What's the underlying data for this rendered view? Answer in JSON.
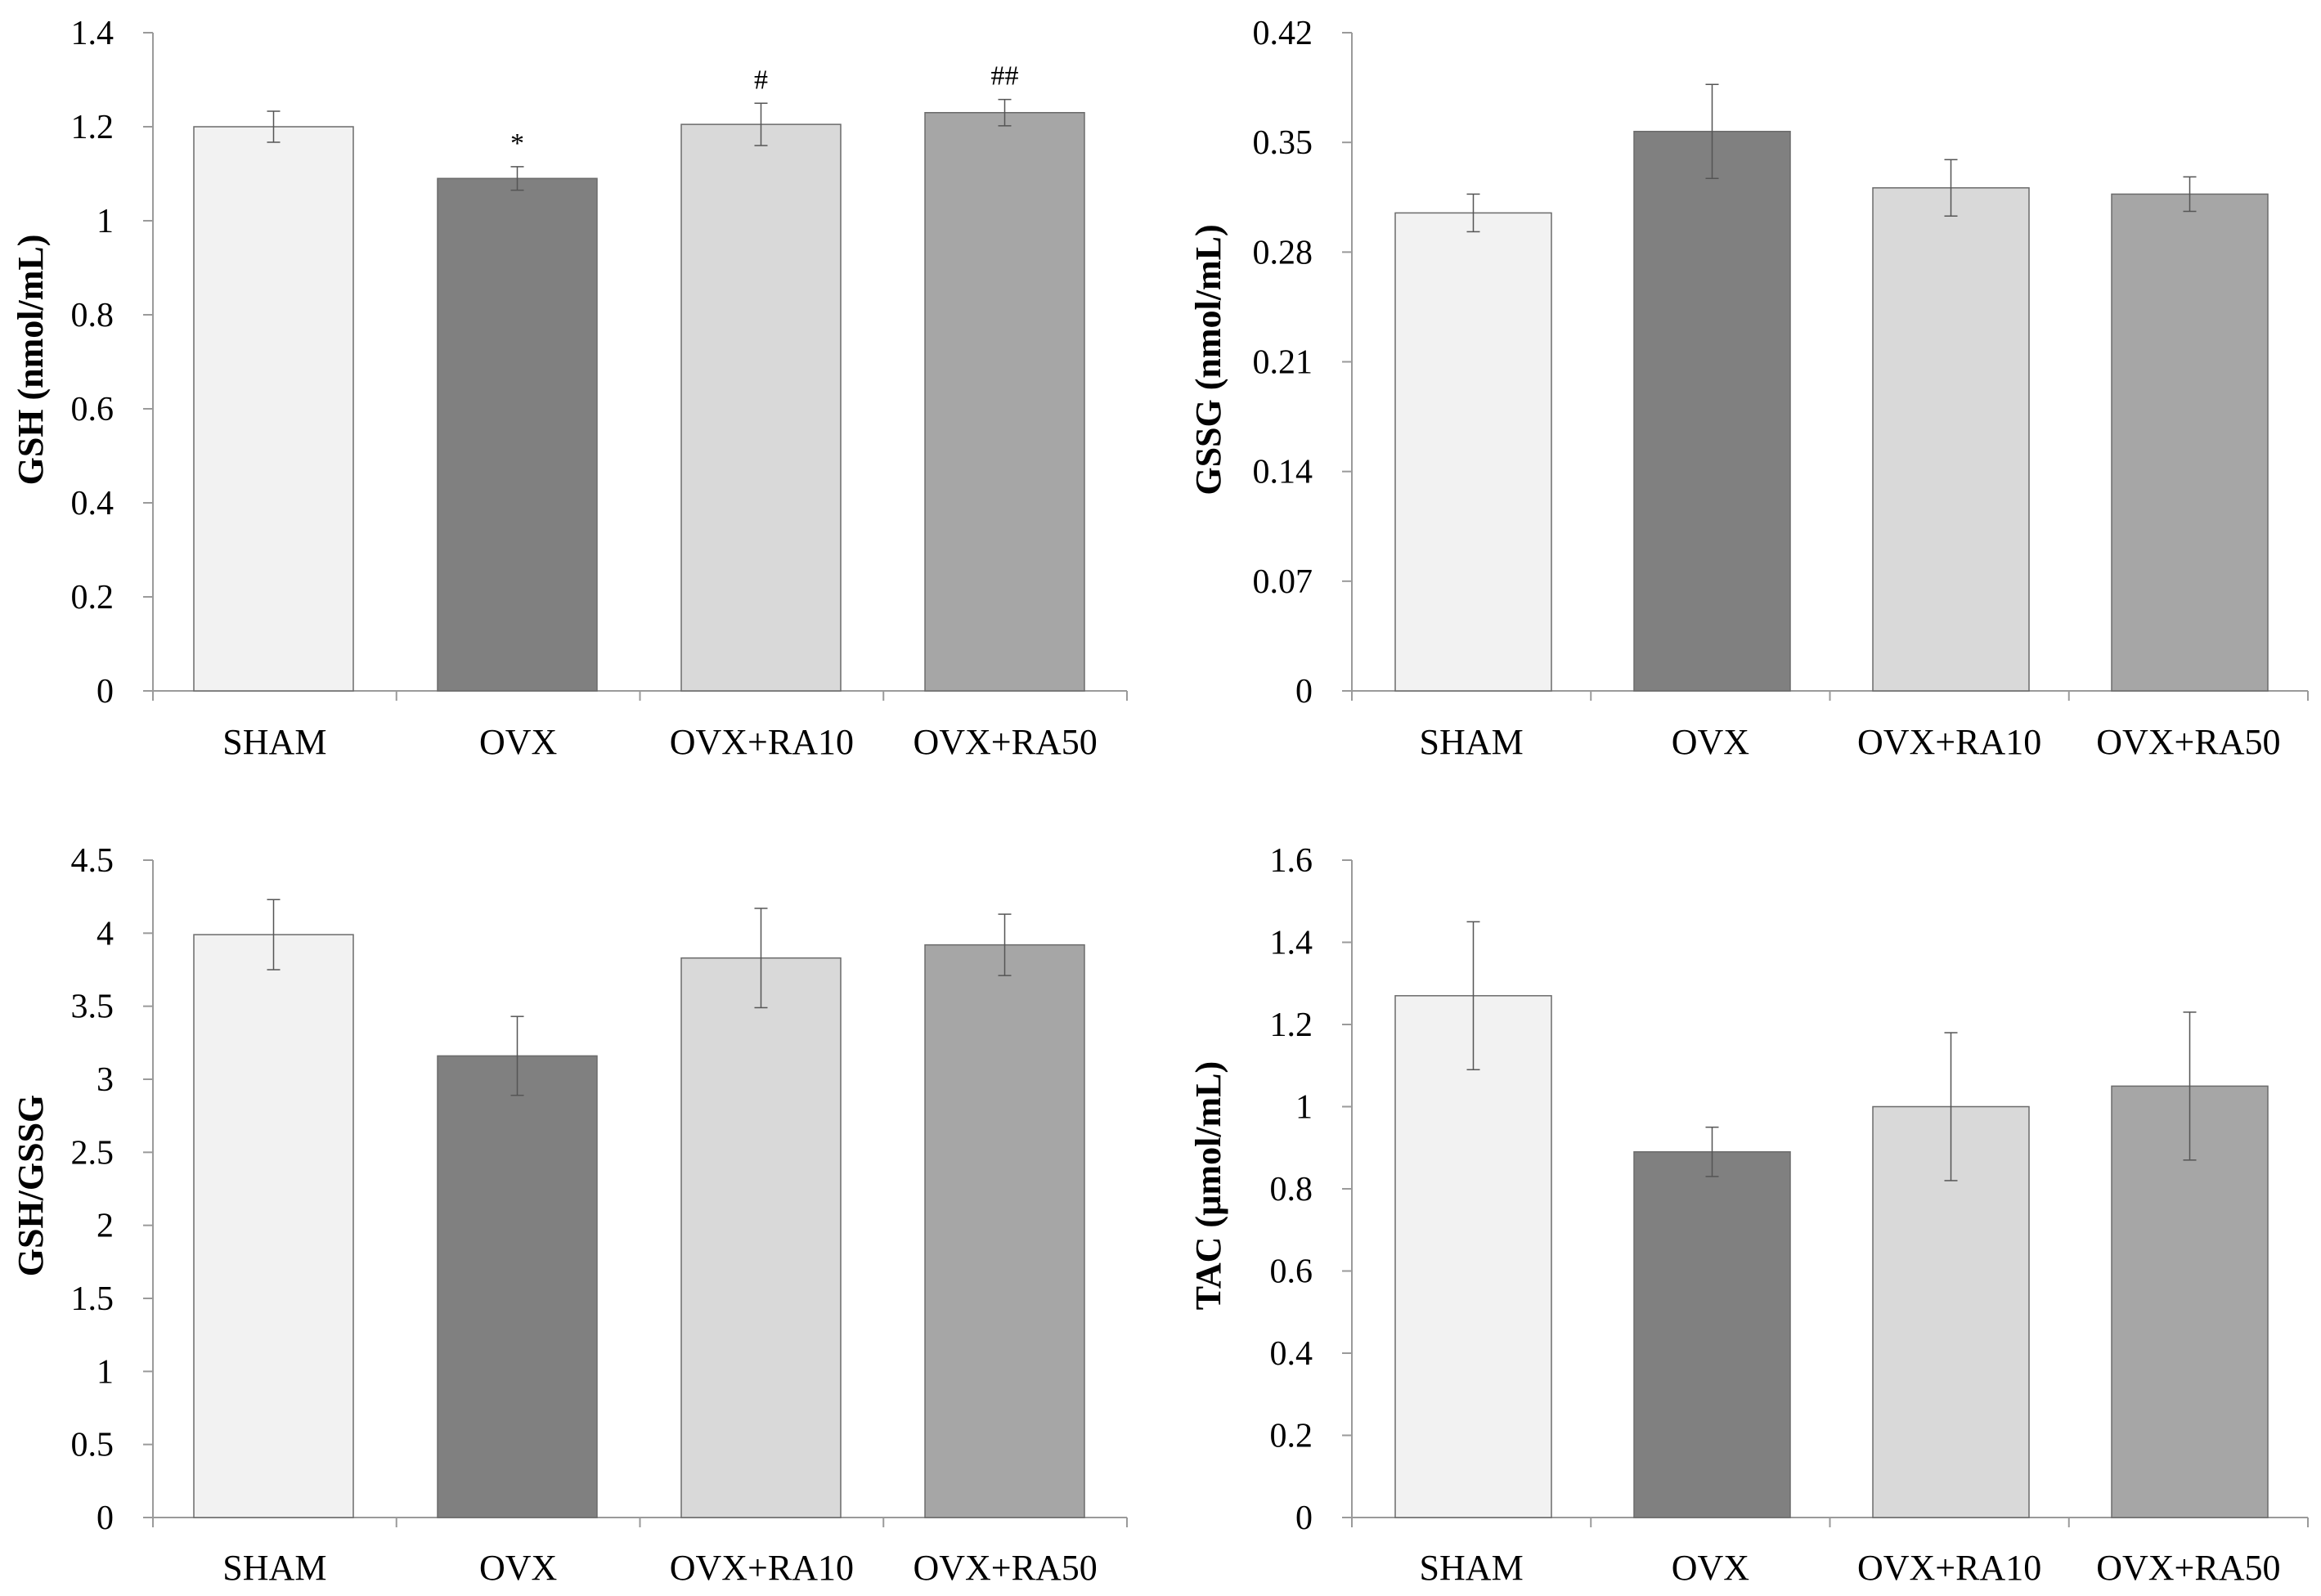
{
  "chart_data": [
    {
      "type": "bar",
      "categories": [
        "SHAM",
        "OVX",
        "OVX+RA10",
        "OVX+RA50"
      ],
      "values": [
        1.2,
        1.09,
        1.205,
        1.23
      ],
      "errors": [
        0.033,
        0.025,
        0.045,
        0.028
      ],
      "annotations": [
        "",
        "*",
        "#",
        "##"
      ],
      "ylabel": "GSH (nmol/mL)",
      "xlabel": "",
      "ylim": [
        0,
        1.4
      ],
      "yticks": [
        "0",
        "0.2",
        "0.4",
        "0.6",
        "0.8",
        "1",
        "1.2",
        "1.4"
      ],
      "grid": false
    },
    {
      "type": "bar",
      "categories": [
        "SHAM",
        "OVX",
        "OVX+RA10",
        "OVX+RA50"
      ],
      "values": [
        0.305,
        0.357,
        0.321,
        0.317
      ],
      "errors": [
        0.012,
        0.03,
        0.018,
        0.011
      ],
      "annotations": [
        "",
        "",
        "",
        ""
      ],
      "ylabel": "GSSG (nmol/mL)",
      "xlabel": "",
      "ylim": [
        0,
        0.42
      ],
      "yticks": [
        "0",
        "0.07",
        "0.14",
        "0.21",
        "0.28",
        "0.35",
        "0.42"
      ],
      "grid": false
    },
    {
      "type": "bar",
      "categories": [
        "SHAM",
        "OVX",
        "OVX+RA10",
        "OVX+RA50"
      ],
      "values": [
        3.99,
        3.16,
        3.83,
        3.92
      ],
      "errors": [
        0.24,
        0.27,
        0.34,
        0.21
      ],
      "annotations": [
        "",
        "",
        "",
        ""
      ],
      "ylabel": "GSH/GSSG",
      "xlabel": "",
      "ylim": [
        0,
        4.5
      ],
      "yticks": [
        "0",
        "0.5",
        "1",
        "1.5",
        "2",
        "2.5",
        "3",
        "3.5",
        "4",
        "4.5"
      ],
      "grid": false
    },
    {
      "type": "bar",
      "categories": [
        "SHAM",
        "OVX",
        "OVX+RA10",
        "OVX+RA50"
      ],
      "values": [
        1.27,
        0.89,
        1.0,
        1.05
      ],
      "errors": [
        0.18,
        0.06,
        0.18,
        0.18
      ],
      "annotations": [
        "",
        "",
        "",
        ""
      ],
      "ylabel": "TAC (µmol/mL)",
      "xlabel": "",
      "ylim": [
        0,
        1.6
      ],
      "yticks": [
        "0",
        "0.2",
        "0.4",
        "0.6",
        "0.8",
        "1",
        "1.2",
        "1.4",
        "1.6"
      ],
      "grid": false
    }
  ],
  "colors": {
    "bar_fills": [
      "#f2f2f2",
      "#808080",
      "#d9d9d9",
      "#a6a6a6"
    ],
    "bar_stroke": "#6b6b6b",
    "axis": "#9a9a9a",
    "error_bar": "#555555"
  }
}
